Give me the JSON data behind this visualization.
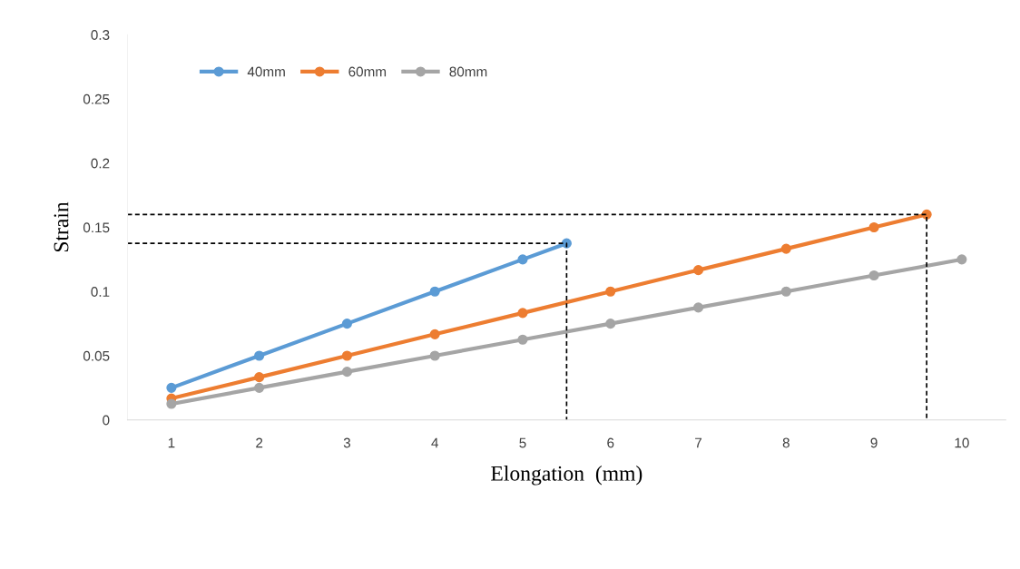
{
  "chart_data": {
    "type": "line",
    "xlabel": "Elongation  (mm)",
    "ylabel": "Strain",
    "xlim": [
      0.5,
      10.5
    ],
    "xticks": [
      1,
      2,
      3,
      4,
      5,
      6,
      7,
      8,
      9,
      10
    ],
    "ylim": [
      0,
      0.3
    ],
    "yticks": [
      0,
      0.05,
      0.1,
      0.15,
      0.2,
      0.25,
      0.3
    ],
    "grid": false,
    "legend": "top left",
    "marker": "circle",
    "line_style": "solid",
    "series": [
      {
        "name": "40mm",
        "color": "#5b9bd5",
        "x": [
          1,
          2,
          3,
          4,
          5,
          5.5
        ],
        "values": [
          0.025,
          0.05,
          0.075,
          0.1,
          0.125,
          0.1375
        ]
      },
      {
        "name": "60mm",
        "color": "#ed7d31",
        "x": [
          1,
          2,
          3,
          4,
          5,
          6,
          7,
          8,
          9,
          9.6
        ],
        "values": [
          0.0167,
          0.0333,
          0.05,
          0.0667,
          0.0833,
          0.1,
          0.1167,
          0.1333,
          0.15,
          0.16
        ]
      },
      {
        "name": "80mm",
        "color": "#a5a5a5",
        "x": [
          1,
          2,
          3,
          4,
          5,
          6,
          7,
          8,
          9,
          10
        ],
        "values": [
          0.0125,
          0.025,
          0.0375,
          0.05,
          0.0625,
          0.075,
          0.0875,
          0.1,
          0.1125,
          0.125
        ]
      },
      {
        "color": "#000000",
        "marker": "none",
        "line_style": "dashed",
        "x": [
          0.5,
          5.5,
          5.5
        ],
        "values": [
          0.1375,
          0.1375,
          0
        ]
      },
      {
        "color": "#000000",
        "marker": "none",
        "line_style": "dashed",
        "x": [
          0.5,
          9.6,
          9.6
        ],
        "values": [
          0.16,
          0.16,
          0
        ]
      }
    ]
  }
}
